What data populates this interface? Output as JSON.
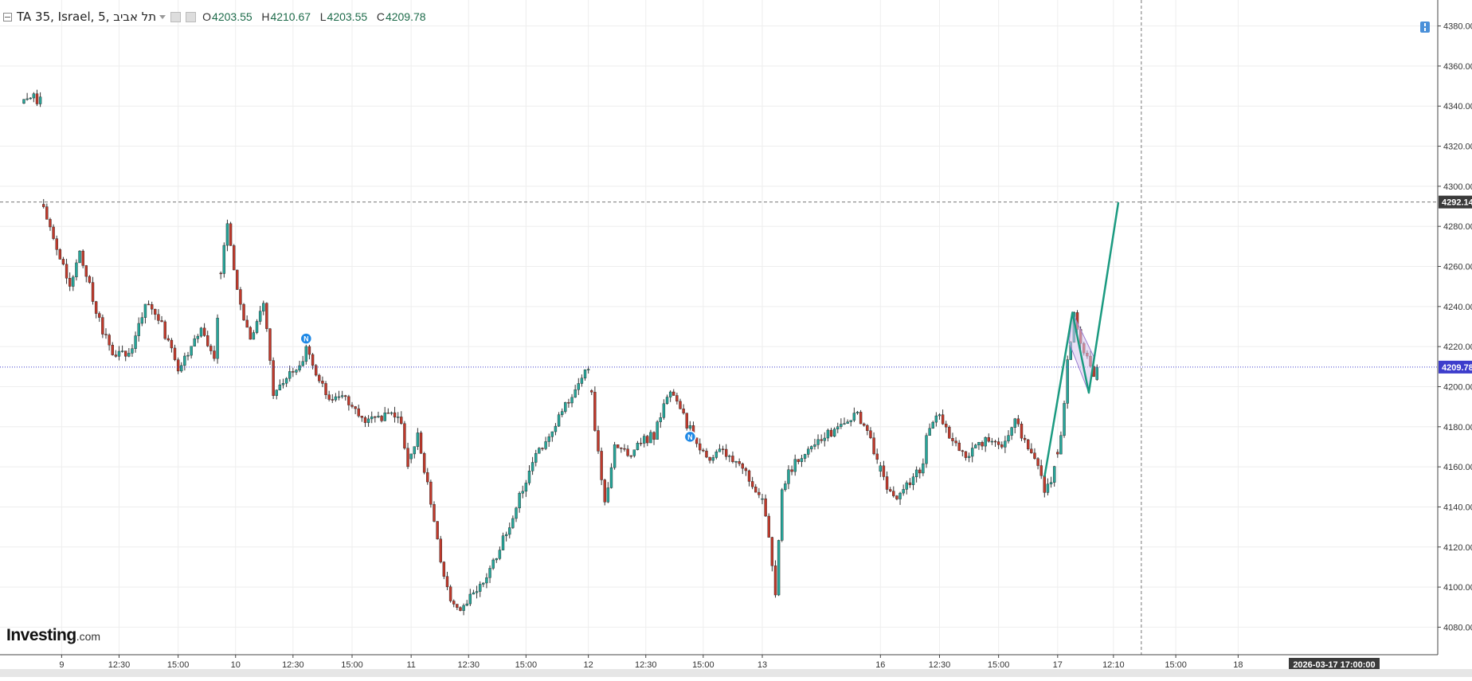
{
  "legend": {
    "symbol": "TA 35, Israel, 5, תל אביב",
    "open_label": "O",
    "open": "4203.55",
    "high_label": "H",
    "high": "4210.67",
    "low_label": "L",
    "low": "4203.55",
    "close_label": "C",
    "close": "4209.78"
  },
  "brand": {
    "name": "Investing",
    "suffix": ".com"
  },
  "crosshair": {
    "date_label": "2026-03-17 17:00:00",
    "price_label": "4292.14",
    "price": 4292.14
  },
  "colors": {
    "up": "#26a69a",
    "down": "#c0392b",
    "wick": "#333333",
    "grid": "#eeeeee",
    "price_line": "#3d3dcc",
    "drawing": "#1a9a80",
    "badge": "#1e88e5",
    "channel_fill": "#d7c6ef",
    "channel_stroke": "#9c7fd0"
  },
  "chart_data": {
    "type": "candlestick",
    "interval": "5",
    "ylim": [
      4075,
      4385
    ],
    "yticks": [
      "4080.00",
      "4100.00",
      "4120.00",
      "4140.00",
      "4160.00",
      "4180.00",
      "4200.00",
      "4220.00",
      "4240.00",
      "4260.00",
      "4280.00",
      "4300.00",
      "4320.00",
      "4340.00",
      "4360.00",
      "4380.00"
    ],
    "ytick_values": [
      4080,
      4100,
      4120,
      4140,
      4160,
      4180,
      4200,
      4220,
      4240,
      4260,
      4280,
      4300,
      4320,
      4340,
      4360,
      4380
    ],
    "xlabels": [
      "9",
      "12:30",
      "15:00",
      "10",
      "12:30",
      "15:00",
      "11",
      "12:30",
      "15:00",
      "12",
      "12:30",
      "15:00",
      "13",
      "16",
      "12:30",
      "15:00",
      "17",
      "12:10",
      "15:00",
      "18"
    ],
    "xlabel_index": [
      11.5,
      29,
      47,
      64.5,
      82,
      100,
      118,
      135.5,
      153,
      172,
      189.5,
      207,
      225,
      261,
      279,
      297,
      315,
      332,
      351,
      370
    ],
    "last_price": 4209.78,
    "last_price_label": "4209.78",
    "news_markers": [
      {
        "label": "N",
        "index": 86,
        "price": 4224
      },
      {
        "label": "N",
        "index": 203,
        "price": 4175
      }
    ],
    "anchors": [
      [
        0,
        4345
      ],
      [
        5,
        4343
      ],
      [
        6,
        4291
      ],
      [
        9,
        4275
      ],
      [
        14,
        4248
      ],
      [
        17,
        4268
      ],
      [
        22,
        4238
      ],
      [
        27,
        4214
      ],
      [
        33,
        4218
      ],
      [
        37,
        4242
      ],
      [
        42,
        4230
      ],
      [
        47,
        4208
      ],
      [
        54,
        4228
      ],
      [
        58,
        4212
      ],
      [
        60,
        4258
      ],
      [
        62,
        4280
      ],
      [
        66,
        4240
      ],
      [
        69,
        4222
      ],
      [
        73,
        4242
      ],
      [
        76,
        4198
      ],
      [
        84,
        4210
      ],
      [
        86,
        4218
      ],
      [
        92,
        4196
      ],
      [
        99,
        4193
      ],
      [
        104,
        4183
      ],
      [
        111,
        4186
      ],
      [
        115,
        4182
      ],
      [
        117,
        4160
      ],
      [
        120,
        4178
      ],
      [
        126,
        4122
      ],
      [
        129,
        4098
      ],
      [
        132,
        4089
      ],
      [
        138,
        4097
      ],
      [
        145,
        4120
      ],
      [
        150,
        4140
      ],
      [
        155,
        4162
      ],
      [
        161,
        4180
      ],
      [
        167,
        4196
      ],
      [
        172,
        4210
      ],
      [
        174,
        4180
      ],
      [
        177,
        4140
      ],
      [
        180,
        4172
      ],
      [
        184,
        4165
      ],
      [
        188,
        4172
      ],
      [
        192,
        4176
      ],
      [
        197,
        4198
      ],
      [
        201,
        4185
      ],
      [
        205,
        4172
      ],
      [
        209,
        4162
      ],
      [
        212,
        4168
      ],
      [
        218,
        4162
      ],
      [
        223,
        4148
      ],
      [
        225,
        4143
      ],
      [
        227,
        4125
      ],
      [
        229,
        4098
      ],
      [
        231,
        4150
      ],
      [
        234,
        4160
      ],
      [
        238,
        4168
      ],
      [
        245,
        4176
      ],
      [
        250,
        4180
      ],
      [
        254,
        4187
      ],
      [
        258,
        4173
      ],
      [
        263,
        4150
      ],
      [
        266,
        4145
      ],
      [
        270,
        4152
      ],
      [
        274,
        4160
      ],
      [
        275,
        4178
      ],
      [
        279,
        4187
      ],
      [
        283,
        4172
      ],
      [
        287,
        4165
      ],
      [
        293,
        4174
      ],
      [
        298,
        4170
      ],
      [
        302,
        4184
      ],
      [
        306,
        4168
      ],
      [
        309,
        4160
      ],
      [
        311,
        4148
      ],
      [
        314,
        4158
      ],
      [
        316,
        4175
      ],
      [
        318,
        4212
      ],
      [
        320,
        4235
      ],
      [
        322,
        4222
      ],
      [
        324,
        4215
      ],
      [
        326,
        4205
      ],
      [
        327,
        4209.78
      ]
    ]
  }
}
